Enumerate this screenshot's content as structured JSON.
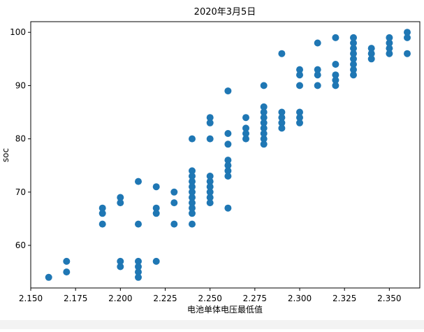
{
  "chart_data": {
    "type": "scatter",
    "title": "2020年3月5日",
    "xlabel": "电池单体电压最低值",
    "ylabel": "soc",
    "xlim": [
      2.15,
      2.367
    ],
    "ylim": [
      52,
      102
    ],
    "xticks": [
      2.15,
      2.175,
      2.2,
      2.225,
      2.25,
      2.275,
      2.3,
      2.325,
      2.35
    ],
    "xtick_labels": [
      "2.150",
      "2.175",
      "2.200",
      "2.225",
      "2.250",
      "2.275",
      "2.300",
      "2.325",
      "2.350"
    ],
    "yticks": [
      60,
      70,
      80,
      90,
      100
    ],
    "ytick_labels": [
      "60",
      "70",
      "80",
      "90",
      "100"
    ],
    "grid": false,
    "color": "#1f77b4",
    "points": [
      [
        2.16,
        54
      ],
      [
        2.17,
        57
      ],
      [
        2.17,
        55
      ],
      [
        2.19,
        67
      ],
      [
        2.19,
        66
      ],
      [
        2.19,
        64
      ],
      [
        2.2,
        69
      ],
      [
        2.2,
        68
      ],
      [
        2.2,
        57
      ],
      [
        2.2,
        56
      ],
      [
        2.21,
        72
      ],
      [
        2.21,
        64
      ],
      [
        2.21,
        57
      ],
      [
        2.21,
        56
      ],
      [
        2.21,
        55
      ],
      [
        2.21,
        54
      ],
      [
        2.22,
        71
      ],
      [
        2.22,
        67
      ],
      [
        2.22,
        66
      ],
      [
        2.22,
        57
      ],
      [
        2.23,
        70
      ],
      [
        2.23,
        68
      ],
      [
        2.23,
        64
      ],
      [
        2.24,
        80
      ],
      [
        2.24,
        74
      ],
      [
        2.24,
        73
      ],
      [
        2.24,
        72
      ],
      [
        2.24,
        71
      ],
      [
        2.24,
        70
      ],
      [
        2.24,
        69
      ],
      [
        2.24,
        68
      ],
      [
        2.24,
        67
      ],
      [
        2.24,
        66
      ],
      [
        2.24,
        64
      ],
      [
        2.25,
        84
      ],
      [
        2.25,
        83
      ],
      [
        2.25,
        80
      ],
      [
        2.25,
        73
      ],
      [
        2.25,
        72
      ],
      [
        2.25,
        71
      ],
      [
        2.25,
        70
      ],
      [
        2.25,
        69
      ],
      [
        2.25,
        68
      ],
      [
        2.26,
        89
      ],
      [
        2.26,
        81
      ],
      [
        2.26,
        79
      ],
      [
        2.26,
        76
      ],
      [
        2.26,
        75
      ],
      [
        2.26,
        74
      ],
      [
        2.26,
        73
      ],
      [
        2.26,
        67
      ],
      [
        2.27,
        84
      ],
      [
        2.27,
        82
      ],
      [
        2.27,
        81
      ],
      [
        2.27,
        80
      ],
      [
        2.28,
        90
      ],
      [
        2.28,
        86
      ],
      [
        2.28,
        85
      ],
      [
        2.28,
        84
      ],
      [
        2.28,
        83
      ],
      [
        2.28,
        82
      ],
      [
        2.28,
        81
      ],
      [
        2.28,
        80
      ],
      [
        2.28,
        79
      ],
      [
        2.29,
        96
      ],
      [
        2.29,
        85
      ],
      [
        2.29,
        84
      ],
      [
        2.29,
        83
      ],
      [
        2.29,
        82
      ],
      [
        2.3,
        93
      ],
      [
        2.3,
        92
      ],
      [
        2.3,
        90
      ],
      [
        2.3,
        85
      ],
      [
        2.3,
        84
      ],
      [
        2.3,
        83
      ],
      [
        2.31,
        98
      ],
      [
        2.31,
        93
      ],
      [
        2.31,
        92
      ],
      [
        2.31,
        90
      ],
      [
        2.32,
        99
      ],
      [
        2.32,
        94
      ],
      [
        2.32,
        92
      ],
      [
        2.32,
        91
      ],
      [
        2.32,
        90
      ],
      [
        2.33,
        99
      ],
      [
        2.33,
        98
      ],
      [
        2.33,
        97
      ],
      [
        2.33,
        96
      ],
      [
        2.33,
        95
      ],
      [
        2.33,
        94
      ],
      [
        2.33,
        93
      ],
      [
        2.33,
        92
      ],
      [
        2.34,
        97
      ],
      [
        2.34,
        96
      ],
      [
        2.34,
        95
      ],
      [
        2.35,
        99
      ],
      [
        2.35,
        98
      ],
      [
        2.35,
        97
      ],
      [
        2.35,
        96
      ],
      [
        2.36,
        100
      ],
      [
        2.36,
        99
      ],
      [
        2.36,
        96
      ]
    ]
  }
}
